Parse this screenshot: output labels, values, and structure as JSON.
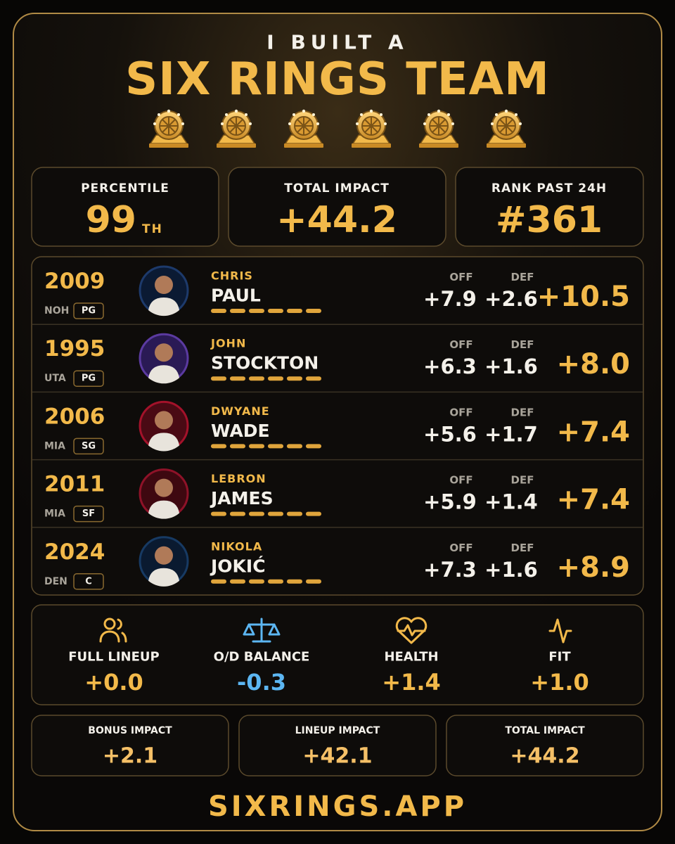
{
  "header": {
    "kicker": "I BUILT A",
    "title": "SIX RINGS TEAM"
  },
  "stats": [
    {
      "label": "PERCENTILE",
      "value": "99",
      "suffix": "TH"
    },
    {
      "label": "TOTAL IMPACT",
      "value": "+44.2"
    },
    {
      "label": "RANK PAST 24H",
      "value": "#361"
    }
  ],
  "columns": {
    "off": "OFF",
    "def": "DEF"
  },
  "players": [
    {
      "year": "2009",
      "team": "NOH",
      "position": "PG",
      "first_name": "CHRIS",
      "last_name": "PAUL",
      "off": "+7.9",
      "def": "+2.6",
      "total": "+10.5"
    },
    {
      "year": "1995",
      "team": "UTA",
      "position": "PG",
      "first_name": "JOHN",
      "last_name": "STOCKTON",
      "off": "+6.3",
      "def": "+1.6",
      "total": "+8.0"
    },
    {
      "year": "2006",
      "team": "MIA",
      "position": "SG",
      "first_name": "DWYANE",
      "last_name": "WADE",
      "off": "+5.6",
      "def": "+1.7",
      "total": "+7.4"
    },
    {
      "year": "2011",
      "team": "MIA",
      "position": "SF",
      "first_name": "LEBRON",
      "last_name": "JAMES",
      "off": "+5.9",
      "def": "+1.4",
      "total": "+7.4"
    },
    {
      "year": "2024",
      "team": "DEN",
      "position": "C",
      "first_name": "NIKOLA",
      "last_name": "JOKIĆ",
      "off": "+7.3",
      "def": "+1.6",
      "total": "+8.9"
    }
  ],
  "bonuses": [
    {
      "label": "FULL LINEUP",
      "value": "+0.0"
    },
    {
      "label": "O/D BALANCE",
      "value": "-0.3"
    },
    {
      "label": "HEALTH",
      "value": "+1.4"
    },
    {
      "label": "FIT",
      "value": "+1.0"
    }
  ],
  "impacts": [
    {
      "label": "BONUS IMPACT",
      "value": "+2.1"
    },
    {
      "label": "LINEUP IMPACT",
      "value": "+42.1"
    },
    {
      "label": "TOTAL IMPACT",
      "value": "+44.2"
    }
  ],
  "footer": "SIXRINGS.APP"
}
